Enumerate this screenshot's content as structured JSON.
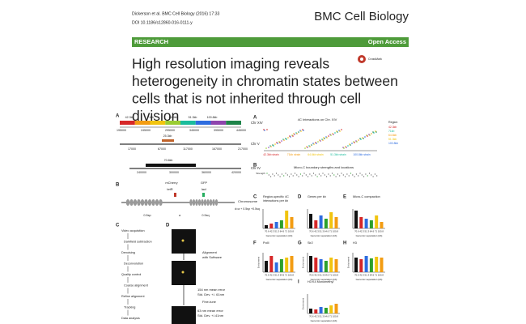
{
  "header": {
    "citation": "Dickerson et al. BMC Cell Biology (2016) 17:33",
    "doi": "DOI 10.1186/s12860-016-0111-y",
    "journal": "BMC Cell Biology"
  },
  "banner": {
    "type": "RESEARCH",
    "access": "Open Access"
  },
  "crossmark": "CrossMark",
  "title": [
    "High resolution imaging reveals",
    "heterogeneity in chromatin states between",
    "cells that is not inherited through cell",
    "division"
  ],
  "figure": {
    "left_a": {
      "label": "A",
      "segments": [
        "42.3kb",
        "71kb",
        "64.6kb",
        "51.3kb",
        "100.8kb"
      ],
      "chr_xiv": "Chr XIV",
      "ticks_xiv": [
        "195000",
        "245000",
        "295000",
        "345000",
        "395000",
        "445000"
      ],
      "chr_v": "Chr V",
      "segment_v": "25.3kb",
      "ticks_v": [
        "17000",
        "67000",
        "117000",
        "167000",
        "217000"
      ],
      "chr_iv": "Chr IV",
      "segment_iv": "70.6kb",
      "ticks_iv": [
        "240000",
        "300000",
        "360000",
        "420000"
      ]
    },
    "left_b": {
      "label": "B",
      "mcherry": "mCherry",
      "gfp": "GFP",
      "tetr": "tetR",
      "laci": "lacI",
      "chromosome": "Chromosome",
      "sp": "0.5sp",
      "a": "a",
      "sq": "0.5sq",
      "formula": "d=a + 0.5sp +0.5sq"
    },
    "left_c": {
      "label": "C",
      "steps": [
        "Video acquisition",
        "Darkfield subtraction",
        "Denoising",
        "Deconvolution",
        "Quality control",
        "Coarse alignment",
        "Refine alignment",
        "Tracking",
        "Data analysis"
      ]
    },
    "left_d": {
      "label": "D",
      "alignment": [
        "Alignment",
        "with Software"
      ],
      "error1": "154 nm mean error",
      "dev1": "Std. Dev. +/- 61nm",
      "finetune": "Fine-tune",
      "error2": "63 nm mean error",
      "dev2": "Std. Dev. +/-41nm"
    },
    "right_a": {
      "label": "A",
      "title": "4C Interactions on Chr. XIV",
      "strains": [
        "42.3kb strain",
        "71kb strain",
        "64.6kb strain",
        "51.3kb strain",
        "100.8kb strain"
      ],
      "legend_header": "Region"
    },
    "right_b": {
      "label": "B",
      "title": "Micro-C boundary strengths and locations",
      "axis": "Strength"
    },
    "charts": [
      {
        "label": "C",
        "title": [
          "Region-specific 4C",
          "interactions per kb"
        ]
      },
      {
        "label": "D",
        "title": [
          "Genes per kb"
        ]
      },
      {
        "label": "E",
        "title": [
          "Micro-C compaction"
        ]
      },
      {
        "label": "F",
        "title": [
          "PolII"
        ]
      },
      {
        "label": "G",
        "title": [
          "Sir2"
        ]
      },
      {
        "label": "H",
        "title": [
          "H3"
        ]
      },
      {
        "label": "I",
        "title": [
          "H3 K4 Monomethyl"
        ]
      }
    ],
    "separation_ticks": "70.6 42.3 51.3 64.6 71 100.8",
    "separation_label": "Genomic separation (kb)",
    "enrichment": "Enrichment"
  }
}
